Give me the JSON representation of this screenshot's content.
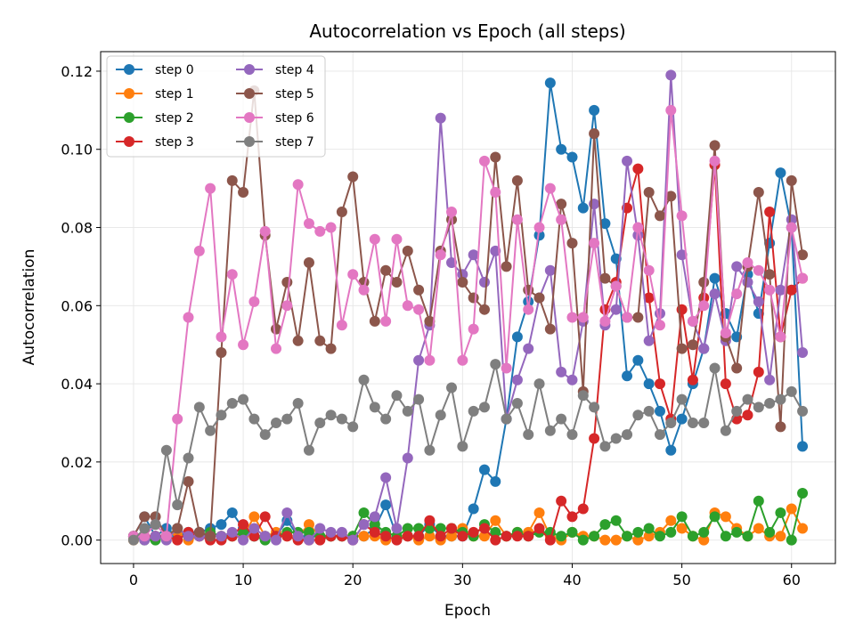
{
  "chart_data": {
    "type": "line",
    "title": "Autocorrelation vs Epoch (all steps)",
    "xlabel": "Epoch",
    "ylabel": "Autocorrelation",
    "xlim": [
      -3,
      64
    ],
    "ylim": [
      -0.006,
      0.125
    ],
    "xticks": [
      0,
      10,
      20,
      30,
      40,
      50,
      60
    ],
    "yticks": [
      0.0,
      0.02,
      0.04,
      0.06,
      0.08,
      0.1,
      0.12
    ],
    "ytick_labels": [
      "0.00",
      "0.02",
      "0.04",
      "0.06",
      "0.08",
      "0.10",
      "0.12"
    ],
    "grid": true,
    "legend": {
      "placement": "top-left",
      "columns": 2
    },
    "x": [
      0,
      1,
      2,
      3,
      4,
      5,
      6,
      7,
      8,
      9,
      10,
      11,
      12,
      13,
      14,
      15,
      16,
      17,
      18,
      19,
      20,
      21,
      22,
      23,
      24,
      25,
      26,
      27,
      28,
      29,
      30,
      31,
      32,
      33,
      34,
      35,
      36,
      37,
      38,
      39,
      40,
      41,
      42,
      43,
      44,
      45,
      46,
      47,
      48,
      49,
      50,
      51,
      52,
      53,
      54,
      55,
      56,
      57,
      58,
      59,
      60,
      61
    ],
    "series": [
      {
        "name": "step 0",
        "color": "#1f77b4",
        "values": [
          0.001,
          0.006,
          0.001,
          0.003,
          0.001,
          0.002,
          0.002,
          0.003,
          0.004,
          0.007,
          0.003,
          0.001,
          0.001,
          0.001,
          0.005,
          0.001,
          0.001,
          0.001,
          0.001,
          0.001,
          0.001,
          0.001,
          0.003,
          0.009,
          0.001,
          0.001,
          0.001,
          0.004,
          0.001,
          0.001,
          0.001,
          0.008,
          0.018,
          0.015,
          0.031,
          0.052,
          0.061,
          0.078,
          0.117,
          0.1,
          0.098,
          0.085,
          0.11,
          0.081,
          0.072,
          0.042,
          0.046,
          0.04,
          0.033,
          0.023,
          0.031,
          0.04,
          0.049,
          0.067,
          0.058,
          0.052,
          0.068,
          0.058,
          0.076,
          0.094,
          0.08,
          0.024
        ]
      },
      {
        "name": "step 1",
        "color": "#ff7f0e",
        "values": [
          0.0,
          0.001,
          0.001,
          0.001,
          0.002,
          0.0,
          0.001,
          0.001,
          0.001,
          0.001,
          0.001,
          0.006,
          0.001,
          0.002,
          0.001,
          0.001,
          0.004,
          0.001,
          0.001,
          0.001,
          0.001,
          0.001,
          0.001,
          0.0,
          0.001,
          0.001,
          0.0,
          0.001,
          0.0,
          0.001,
          0.003,
          0.001,
          0.001,
          0.005,
          0.001,
          0.002,
          0.002,
          0.007,
          0.001,
          0.0,
          0.002,
          0.001,
          0.001,
          0.0,
          0.0,
          0.001,
          0.0,
          0.001,
          0.002,
          0.005,
          0.003,
          0.001,
          0.0,
          0.007,
          0.006,
          0.003,
          0.001,
          0.003,
          0.001,
          0.001,
          0.008,
          0.003
        ]
      },
      {
        "name": "step 2",
        "color": "#2ca02c",
        "values": [
          0.001,
          0.0,
          0.0,
          0.001,
          0.003,
          0.001,
          0.001,
          0.002,
          0.001,
          0.001,
          0.002,
          0.001,
          0.0,
          0.001,
          0.002,
          0.002,
          0.002,
          0.001,
          0.001,
          0.001,
          0.001,
          0.007,
          0.004,
          0.002,
          0.001,
          0.003,
          0.003,
          0.003,
          0.003,
          0.003,
          0.002,
          0.001,
          0.004,
          0.002,
          0.001,
          0.002,
          0.001,
          0.002,
          0.002,
          0.001,
          0.002,
          0.0,
          0.001,
          0.004,
          0.005,
          0.001,
          0.002,
          0.003,
          0.001,
          0.002,
          0.006,
          0.001,
          0.002,
          0.006,
          0.001,
          0.002,
          0.001,
          0.01,
          0.002,
          0.007,
          0.0,
          0.012
        ]
      },
      {
        "name": "step 3",
        "color": "#d62728",
        "values": [
          0.001,
          0.001,
          0.001,
          0.001,
          0.0,
          0.002,
          0.001,
          0.0,
          0.0,
          0.001,
          0.004,
          0.001,
          0.006,
          0.001,
          0.001,
          0.0,
          0.0,
          0.0,
          0.001,
          0.001,
          0.0,
          0.004,
          0.002,
          0.001,
          0.0,
          0.001,
          0.001,
          0.005,
          0.001,
          0.003,
          0.001,
          0.002,
          0.003,
          0.0,
          0.001,
          0.001,
          0.001,
          0.003,
          0.0,
          0.01,
          0.006,
          0.008,
          0.026,
          0.059,
          0.066,
          0.085,
          0.095,
          0.062,
          0.04,
          0.031,
          0.059,
          0.041,
          0.062,
          0.096,
          0.04,
          0.031,
          0.032,
          0.043,
          0.084,
          0.052,
          0.064,
          0.067
        ]
      },
      {
        "name": "step 4",
        "color": "#9467bd",
        "values": [
          0.001,
          0.0,
          0.001,
          0.0,
          0.003,
          0.001,
          0.001,
          0.001,
          0.001,
          0.002,
          0.0,
          0.003,
          0.001,
          0.0,
          0.007,
          0.001,
          0.0,
          0.003,
          0.002,
          0.002,
          0.0,
          0.004,
          0.006,
          0.016,
          0.003,
          0.021,
          0.046,
          0.055,
          0.108,
          0.071,
          0.068,
          0.073,
          0.066,
          0.074,
          0.031,
          0.041,
          0.049,
          0.062,
          0.069,
          0.043,
          0.041,
          0.056,
          0.086,
          0.055,
          0.059,
          0.097,
          0.078,
          0.051,
          0.058,
          0.119,
          0.073,
          0.056,
          0.049,
          0.063,
          0.051,
          0.07,
          0.066,
          0.061,
          0.041,
          0.064,
          0.082,
          0.048
        ]
      },
      {
        "name": "step 5",
        "color": "#8c564b",
        "values": [
          0.001,
          0.006,
          0.006,
          0.001,
          0.003,
          0.015,
          0.002,
          0.001,
          0.048,
          0.092,
          0.089,
          0.115,
          0.078,
          0.054,
          0.066,
          0.051,
          0.071,
          0.051,
          0.049,
          0.084,
          0.093,
          0.066,
          0.056,
          0.069,
          0.066,
          0.074,
          0.064,
          0.056,
          0.074,
          0.082,
          0.066,
          0.062,
          0.059,
          0.098,
          0.07,
          0.092,
          0.064,
          0.062,
          0.054,
          0.086,
          0.076,
          0.038,
          0.104,
          0.067,
          0.065,
          0.057,
          0.057,
          0.089,
          0.083,
          0.088,
          0.049,
          0.05,
          0.066,
          0.101,
          0.052,
          0.044,
          0.07,
          0.089,
          0.068,
          0.029,
          0.092,
          0.073
        ]
      },
      {
        "name": "step 6",
        "color": "#e377c2",
        "values": [
          0.001,
          0.001,
          0.004,
          0.001,
          0.031,
          0.057,
          0.074,
          0.09,
          0.052,
          0.068,
          0.05,
          0.061,
          0.079,
          0.049,
          0.06,
          0.091,
          0.081,
          0.079,
          0.08,
          0.055,
          0.068,
          0.064,
          0.077,
          0.056,
          0.077,
          0.06,
          0.059,
          0.046,
          0.073,
          0.084,
          0.046,
          0.054,
          0.097,
          0.089,
          0.044,
          0.082,
          0.059,
          0.08,
          0.09,
          0.082,
          0.057,
          0.057,
          0.076,
          0.056,
          0.065,
          0.057,
          0.08,
          0.069,
          0.055,
          0.11,
          0.083,
          0.056,
          0.06,
          0.097,
          0.053,
          0.063,
          0.071,
          0.069,
          0.064,
          0.052,
          0.08,
          0.067
        ]
      },
      {
        "name": "step 7",
        "color": "#7f7f7f",
        "values": [
          0.0,
          0.003,
          0.004,
          0.023,
          0.009,
          0.021,
          0.034,
          0.028,
          0.032,
          0.035,
          0.036,
          0.031,
          0.027,
          0.03,
          0.031,
          0.035,
          0.023,
          0.03,
          0.032,
          0.031,
          0.029,
          0.041,
          0.034,
          0.031,
          0.037,
          0.033,
          0.036,
          0.023,
          0.032,
          0.039,
          0.024,
          0.033,
          0.034,
          0.045,
          0.031,
          0.035,
          0.027,
          0.04,
          0.028,
          0.031,
          0.027,
          0.037,
          0.034,
          0.024,
          0.026,
          0.027,
          0.032,
          0.033,
          0.027,
          0.03,
          0.036,
          0.03,
          0.03,
          0.044,
          0.028,
          0.033,
          0.036,
          0.034,
          0.035,
          0.036,
          0.038,
          0.033
        ]
      }
    ]
  }
}
